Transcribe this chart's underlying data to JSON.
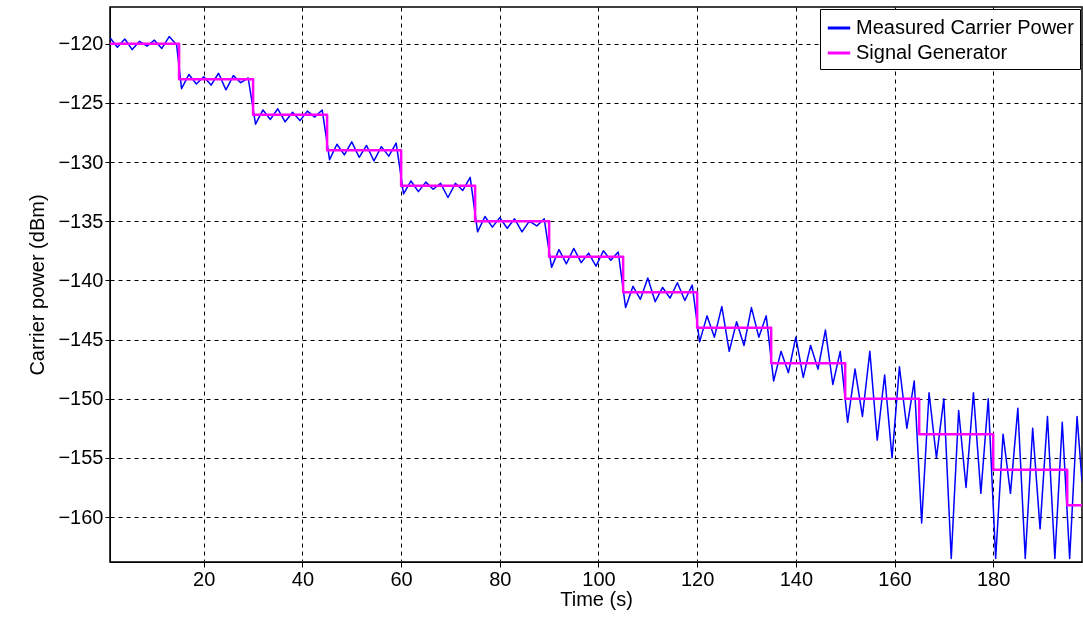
{
  "chart_data": {
    "type": "line",
    "xlabel": "Time (s)",
    "ylabel": "Carrier power (dBm)",
    "xlim": [
      1,
      198
    ],
    "ylim": [
      -163.8,
      -116.9
    ],
    "xticks": [
      20,
      40,
      60,
      80,
      100,
      120,
      140,
      160,
      180
    ],
    "yticks": [
      -120,
      -125,
      -130,
      -135,
      -140,
      -145,
      -150,
      -155,
      -160
    ],
    "grid": true,
    "legend": "top right",
    "line_style": "solid",
    "series": [
      {
        "name": "Measured Carrier Power",
        "color": "#0000ff",
        "type": "line",
        "x": [
          1,
          2.5,
          4,
          5.5,
          7,
          8.5,
          10,
          11.5,
          13,
          14.5,
          15.5,
          17,
          18.5,
          20,
          21.5,
          23,
          24.5,
          26,
          27.5,
          29,
          30.5,
          32,
          33.5,
          35,
          36.5,
          38,
          39.5,
          41,
          42.5,
          44,
          45.5,
          47,
          48.5,
          50,
          51.5,
          53,
          54.5,
          56,
          57.5,
          59,
          60.5,
          62,
          63.5,
          65,
          66.5,
          68,
          69.5,
          71,
          72.5,
          74,
          75.5,
          77,
          78.5,
          80,
          81.5,
          83,
          84.5,
          86,
          87.5,
          89,
          90.5,
          92,
          93.5,
          95,
          96.5,
          98,
          99.5,
          101,
          102.5,
          104,
          105.5,
          107,
          108.5,
          110,
          111.5,
          113,
          114.5,
          116,
          117.5,
          119,
          120.5,
          122,
          123.5,
          125,
          126.5,
          128,
          129.5,
          131,
          132.5,
          134,
          135.5,
          137,
          138.5,
          140,
          141.5,
          143,
          144.5,
          146,
          147.5,
          149,
          150.5,
          152,
          153.5,
          155,
          156.5,
          158,
          159.5,
          161,
          162.5,
          164,
          165.5,
          167,
          168.5,
          170,
          171.5,
          173,
          174.5,
          176,
          177.5,
          179,
          180.5,
          182,
          183.5,
          185,
          186.5,
          188,
          189.5,
          191,
          192.5,
          194,
          195.5,
          197,
          198
        ],
        "values": [
          -119.5,
          -120.3,
          -119.6,
          -120.5,
          -119.8,
          -120.2,
          -119.7,
          -120.4,
          -119.4,
          -120.1,
          -123.8,
          -122.6,
          -123.4,
          -122.8,
          -123.5,
          -122.5,
          -123.9,
          -122.7,
          -123.3,
          -122.9,
          -126.8,
          -125.6,
          -126.4,
          -125.5,
          -126.6,
          -125.8,
          -126.5,
          -125.7,
          -126.2,
          -125.6,
          -129.8,
          -128.5,
          -129.4,
          -128.3,
          -129.6,
          -128.6,
          -129.9,
          -128.7,
          -129.5,
          -128.4,
          -132.7,
          -131.6,
          -132.5,
          -131.7,
          -132.3,
          -131.8,
          -133,
          -131.8,
          -132.4,
          -131.3,
          -135.9,
          -134.6,
          -135.5,
          -134.7,
          -135.6,
          -134.8,
          -135.9,
          -135,
          -135.4,
          -134.8,
          -138.9,
          -137.4,
          -138.6,
          -137.3,
          -138.5,
          -137.7,
          -138.8,
          -137.5,
          -138.3,
          -137.6,
          -142.3,
          -140.5,
          -141.6,
          -139.8,
          -141.8,
          -140.6,
          -141.5,
          -140.2,
          -141.7,
          -140.4,
          -145.2,
          -143,
          -144.8,
          -142.2,
          -146,
          -143.5,
          -145.5,
          -142.3,
          -144.8,
          -143,
          -148.5,
          -146,
          -147.8,
          -144.8,
          -148.2,
          -145.5,
          -147.5,
          -144.2,
          -148.8,
          -146,
          -152,
          -147.5,
          -151.5,
          -146,
          -153.5,
          -148,
          -155,
          -147.3,
          -152.5,
          -148.5,
          -160.5,
          -149.5,
          -155,
          -150,
          -163.5,
          -151,
          -157.5,
          -149.5,
          -158,
          -150,
          -163.5,
          -153,
          -158,
          -150.8,
          -163.5,
          -152.5,
          -161,
          -151.5,
          -163.5,
          -152,
          -163.5,
          -151.5,
          -157
        ]
      },
      {
        "name": "Signal Generator",
        "color": "#ff00ff",
        "type": "step",
        "x": [
          1,
          15,
          30,
          45,
          60,
          75,
          90,
          105,
          120,
          135,
          150,
          165,
          180,
          195,
          198
        ],
        "values": [
          -120,
          -123,
          -126,
          -129,
          -132,
          -135,
          -138,
          -141,
          -144,
          -147,
          -150,
          -153,
          -156,
          -159,
          -159
        ]
      }
    ]
  }
}
